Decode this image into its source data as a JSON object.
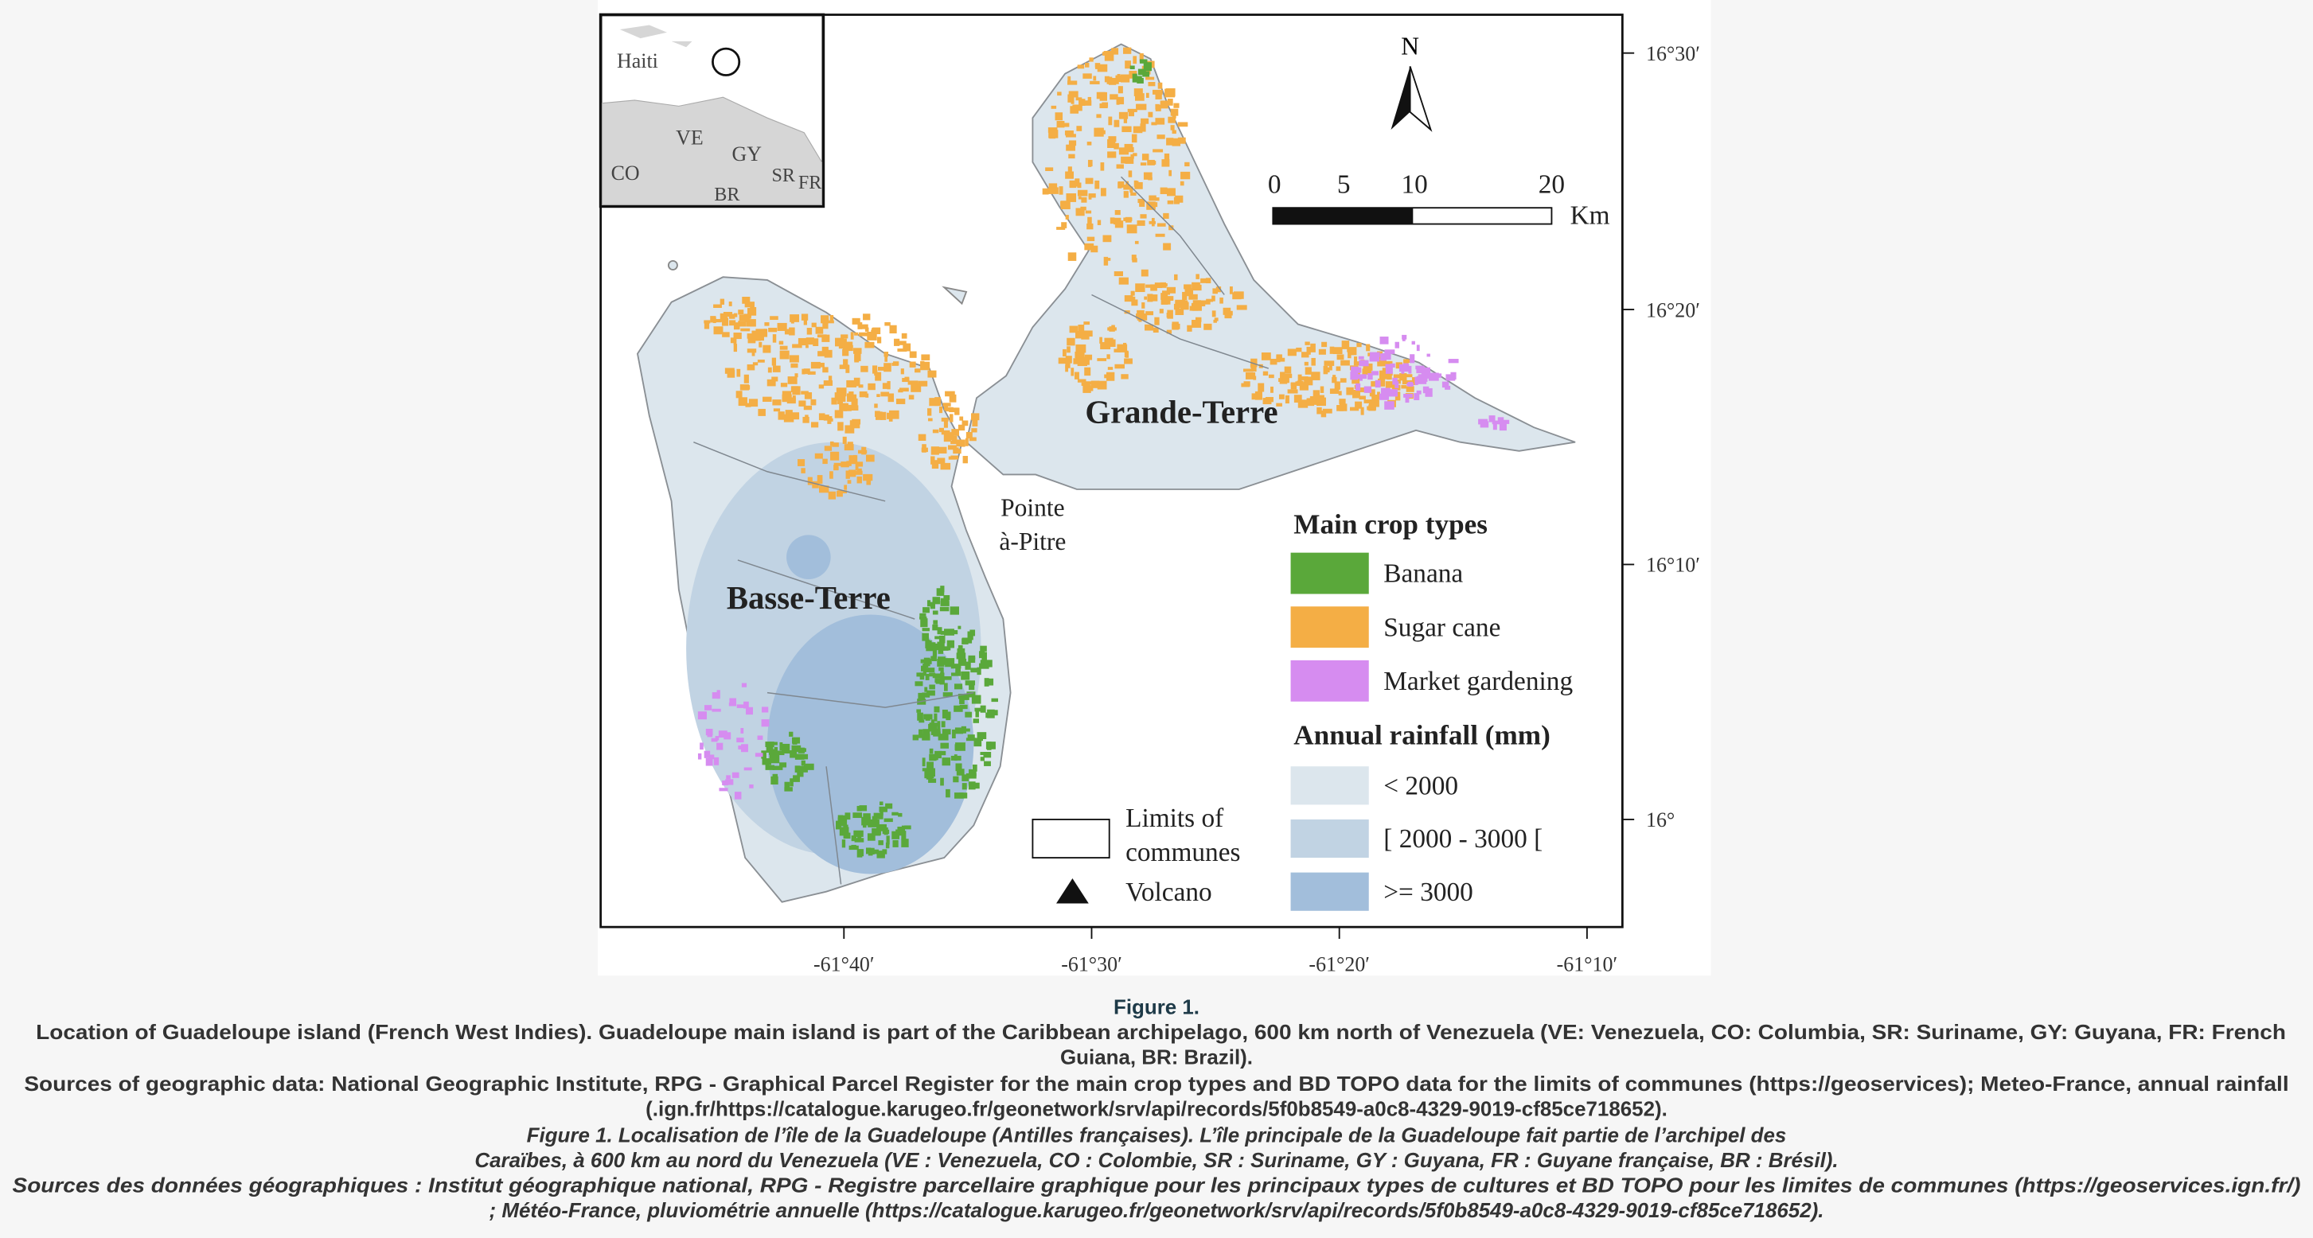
{
  "map": {
    "inset_labels": [
      "Haiti",
      "VE",
      "GY",
      "CO",
      "SR",
      "FR",
      "BR"
    ],
    "north_arrow": "N",
    "scale_bar": {
      "ticks": [
        "0",
        "5",
        "10",
        "20"
      ],
      "unit": "Km"
    },
    "places": {
      "grande_terre": "Grande-Terre",
      "basse_terre": "Basse-Terre",
      "pointe_a_pitre": [
        "Pointe",
        "à-Pitre"
      ]
    },
    "legend": {
      "crop_title": "Main crop types",
      "crops": [
        {
          "label": "Banana",
          "color": "#5aa83a"
        },
        {
          "label": "Sugar cane",
          "color": "#f4ae45"
        },
        {
          "label": "Market gardening",
          "color": "#d68cf0"
        }
      ],
      "rain_title": "Annual rainfall (mm)",
      "rainfall": [
        {
          "label": "< 2000",
          "color": "#dce6ed"
        },
        {
          "label": "[ 2000 - 3000 [",
          "color": "#c1d3e3"
        },
        {
          "label": ">= 3000",
          "color": "#a2bedb"
        }
      ],
      "communes": [
        "Limits of",
        "communes"
      ],
      "volcano": "Volcano"
    },
    "lat_ticks": [
      "16°30′",
      "16°20′",
      "16°10′",
      "16°"
    ],
    "lon_ticks": [
      "-61°40′",
      "-61°30′",
      "-61°20′",
      "-61°10′"
    ]
  },
  "caption": {
    "title": "Figure 1.",
    "lines": [
      "Location of Guadeloupe island (French West Indies). Guadeloupe main island is part of the Caribbean archipelago, 600 km north of Venezuela (VE: Venezuela, CO: Columbia, SR: Suriname, GY: Guyana, FR: French",
      "Guiana, BR: Brazil).",
      "Sources of geographic data: National Geographic Institute, RPG - Graphical Parcel Register for the main crop types and BD TOPO data for the limits of communes (https://geoservices); Meteo-France, annual rainfall",
      "(.ign.fr/https://catalogue.karugeo.fr/geonetwork/srv/api/records/5f0b8549-a0c8-4329-9019-cf85ce718652).",
      "Figure 1. Localisation de l’île de la Guadeloupe (Antilles françaises). L’île principale de la Guadeloupe fait partie de l’archipel des",
      "Caraïbes, à 600 km au nord du Venezuela (VE : Venezuela, CO : Colombie, SR : Suriname, GY : Guyana, FR : Guyane française, BR : Brésil).",
      "Sources des données géographiques : Institut géographique national, RPG - Registre parcellaire graphique pour les principaux types de cultures et BD TOPO pour les limites de communes (https://geoservices.ign.fr/)",
      "; Météo-France, pluviométrie annuelle (https://catalogue.karugeo.fr/geonetwork/srv/api/records/5f0b8549-a0c8-4329-9019-cf85ce718652)."
    ]
  }
}
